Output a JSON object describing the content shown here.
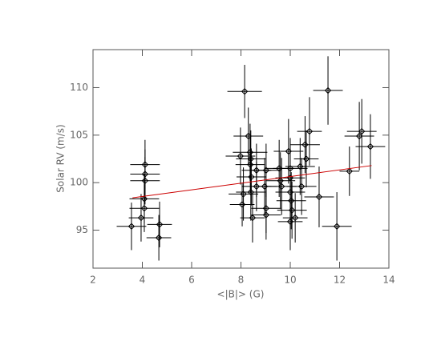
{
  "chart_data": {
    "type": "scatter",
    "x_label": "<|B|> (G)",
    "y_label": "Solar RV (m/s)",
    "xlim": [
      2,
      14
    ],
    "ylim": [
      91,
      114
    ],
    "xticks": [
      2,
      4,
      6,
      8,
      10,
      12,
      14
    ],
    "yticks": [
      95,
      100,
      105,
      110
    ],
    "series": [
      {
        "color": "#000000",
        "x": [
          3.56,
          3.95,
          4.08,
          4.08,
          4.11,
          4.11,
          4.11,
          4.7,
          4.67,
          8.15,
          7.98,
          8.05,
          8.1,
          8.3,
          8.37,
          8.4,
          8.42,
          8.4,
          8.47,
          8.38,
          8.63,
          8.63,
          8.96,
          9.02,
          9.02,
          9.02,
          9.55,
          9.6,
          9.65,
          9.93,
          10.0,
          10.0,
          10.0,
          10.04,
          10.0,
          10.07,
          10.2,
          10.4,
          10.46,
          10.6,
          10.65,
          10.78,
          11.17,
          11.53,
          11.89,
          12.4,
          12.8,
          12.9,
          13.25
        ],
        "values": [
          95.4,
          96.3,
          98.3,
          97.3,
          101.9,
          100.9,
          100.2,
          95.6,
          94.2,
          109.6,
          102.8,
          97.7,
          98.8,
          104.9,
          103.2,
          102.5,
          100.6,
          99.0,
          96.3,
          101.9,
          99.6,
          101.3,
          99.6,
          101.3,
          97.3,
          96.6,
          101.5,
          100.2,
          99.6,
          103.3,
          101.5,
          100.5,
          99.0,
          98.1,
          95.9,
          97.1,
          96.3,
          101.7,
          99.6,
          104.0,
          102.5,
          105.4,
          98.5,
          109.7,
          95.4,
          101.2,
          104.9,
          105.4,
          103.8
        ],
        "xerr": [
          0.6,
          0.5,
          0.6,
          0.6,
          0.6,
          0.6,
          0.6,
          0.5,
          0.5,
          0.7,
          0.6,
          0.5,
          0.6,
          0.6,
          0.7,
          0.6,
          0.6,
          0.6,
          0.5,
          0.6,
          0.6,
          0.6,
          0.5,
          0.6,
          0.6,
          0.6,
          0.6,
          0.6,
          0.6,
          0.6,
          0.7,
          0.6,
          0.6,
          0.6,
          0.5,
          0.6,
          0.5,
          0.6,
          0.6,
          0.6,
          0.5,
          0.5,
          0.6,
          0.6,
          0.6,
          0.4,
          0.6,
          0.6,
          0.6
        ],
        "yerr": [
          2.5,
          2.5,
          2.6,
          2.5,
          2.6,
          2.6,
          2.5,
          2.4,
          2.4,
          2.8,
          3.0,
          2.3,
          2.8,
          3.0,
          3.0,
          3.0,
          3.0,
          3.0,
          2.6,
          3.0,
          2.6,
          2.8,
          3.0,
          2.8,
          2.6,
          2.6,
          3.0,
          3.0,
          3.0,
          3.4,
          3.2,
          3.0,
          3.0,
          3.0,
          3.0,
          3.0,
          2.6,
          3.0,
          3.0,
          3.0,
          3.0,
          3.6,
          3.2,
          3.6,
          3.6,
          2.6,
          3.6,
          3.4,
          3.4
        ]
      }
    ],
    "fit": {
      "color": "#cc0000",
      "x": [
        3.6,
        13.3
      ],
      "values": [
        98.4,
        101.8
      ]
    }
  }
}
